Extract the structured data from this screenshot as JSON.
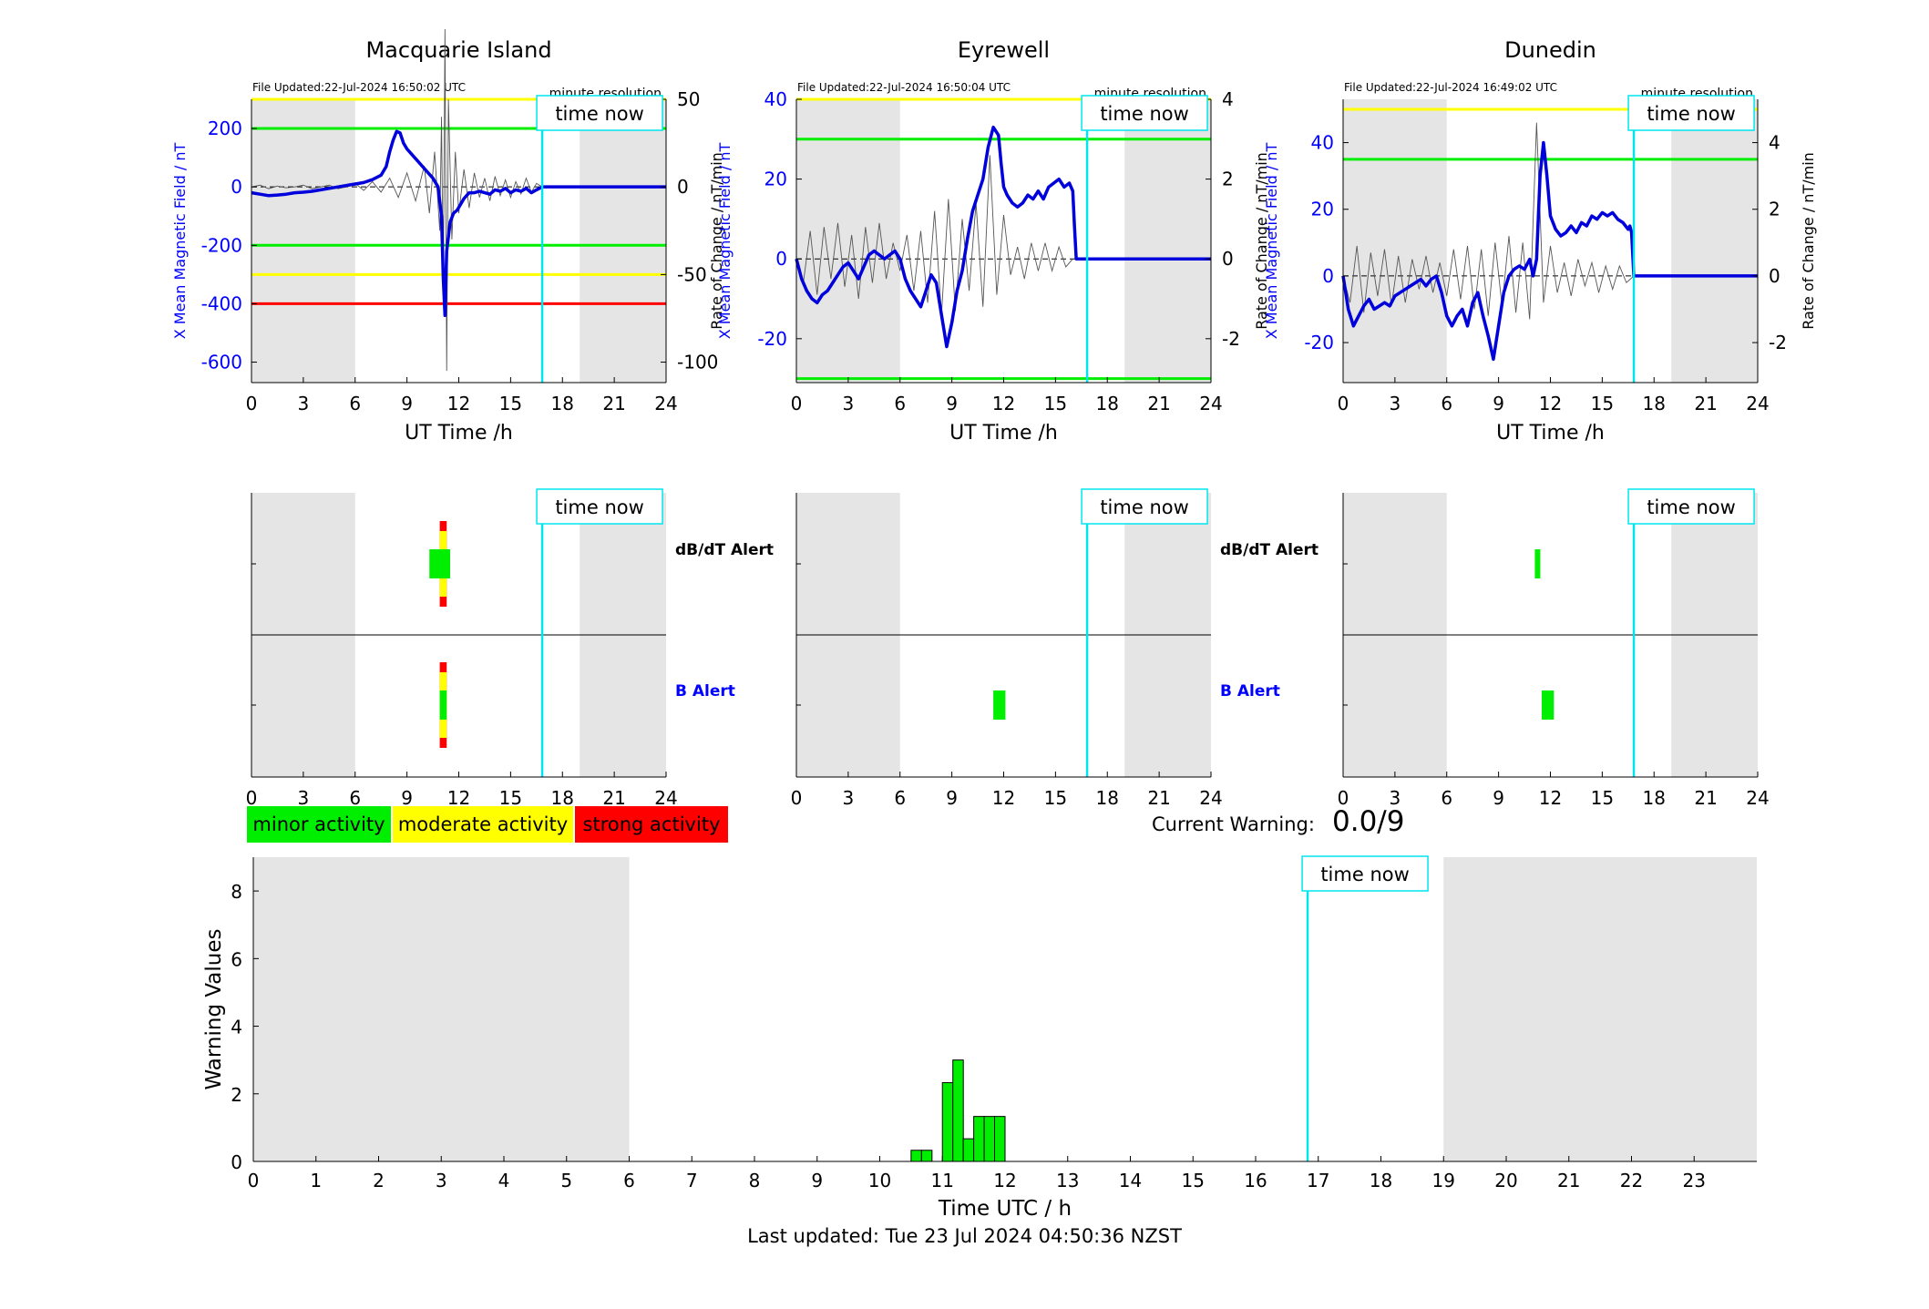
{
  "colors": {
    "shade": "#e5e5e5",
    "now_line": "#00e5ee",
    "field_line": "#0000dd",
    "roc_line": "#555555",
    "threshold_minor": "#00ee00",
    "threshold_moderate": "#ffff00",
    "threshold_strong": "#ff0000",
    "blue_text": "#0000ff"
  },
  "labels": {
    "time_now": "time now",
    "file_updated_prefix": "File Updated:",
    "minute_resolution": "minute resolution",
    "ut_time_axis": "UT Time /h",
    "y_left_axis": "X Mean Magnetic Field / nT",
    "y_right_axis": "Rate of Change / nT/min",
    "dbdt_alert": "dB/dT Alert",
    "b_alert": "B Alert"
  },
  "legend": [
    {
      "label": "minor activity",
      "color": "#00ee00"
    },
    {
      "label": "moderate activity",
      "color": "#ffff00"
    },
    {
      "label": "strong activity",
      "color": "#ff0000"
    }
  ],
  "current_warning": {
    "label": "Current Warning:",
    "value": "0.0/9"
  },
  "last_updated": "Last updated: Tue 23 Jul 2024 04:50:36 NZST",
  "chart_data": [
    {
      "type": "line",
      "title": "Macquarie Island",
      "file_updated": "22-Jul-2024 16:50:02 UTC",
      "xlabel": "UT Time /h",
      "ylabel": "X Mean Magnetic Field / nT",
      "y2label": "Rate of Change / nT/min",
      "xlim": [
        0,
        24
      ],
      "xticks": [
        0,
        3,
        6,
        9,
        12,
        15,
        18,
        21,
        24
      ],
      "ylim": [
        -670,
        300
      ],
      "yticks": [
        -600,
        -400,
        -200,
        0,
        200
      ],
      "y2lim": [
        -111.67,
        50
      ],
      "y2ticks": [
        -100,
        -50,
        0,
        50
      ],
      "time_now": 16.83,
      "shaded": [
        [
          0,
          6
        ],
        [
          19,
          24
        ]
      ],
      "thresholds": [
        {
          "value": 300,
          "level": "moderate"
        },
        {
          "value": 200,
          "level": "minor"
        },
        {
          "value": -200,
          "level": "minor"
        },
        {
          "value": -300,
          "level": "moderate"
        },
        {
          "value": -400,
          "level": "strong"
        }
      ],
      "series": [
        {
          "kind": "field",
          "x": [
            0,
            0.5,
            1,
            1.5,
            2,
            2.5,
            3,
            3.5,
            4,
            4.5,
            5,
            5.5,
            6,
            6.5,
            7,
            7.5,
            7.8,
            8.0,
            8.2,
            8.4,
            8.6,
            8.8,
            9.0,
            9.3,
            9.6,
            9.9,
            10.2,
            10.5,
            10.8,
            11.0,
            11.1,
            11.2,
            11.3,
            11.5,
            11.7,
            11.9,
            12.1,
            12.3,
            12.6,
            12.9,
            13.2,
            13.5,
            13.8,
            14.1,
            14.4,
            14.7,
            15.0,
            15.3,
            15.6,
            15.9,
            16.2,
            16.5,
            16.83,
            24
          ],
          "y": [
            -20,
            -25,
            -30,
            -28,
            -25,
            -20,
            -18,
            -15,
            -10,
            -5,
            0,
            5,
            10,
            15,
            25,
            40,
            70,
            120,
            160,
            190,
            185,
            150,
            130,
            110,
            90,
            70,
            50,
            30,
            0,
            -100,
            -310,
            -440,
            -220,
            -120,
            -90,
            -80,
            -60,
            -40,
            -20,
            -20,
            -15,
            -20,
            -25,
            -10,
            -15,
            -5,
            -20,
            -10,
            -15,
            -5,
            -20,
            -10,
            0,
            0
          ]
        },
        {
          "kind": "rate_of_change",
          "x": [
            0,
            0.5,
            1,
            1.5,
            2,
            2.5,
            3,
            3.5,
            4,
            4.5,
            5,
            5.5,
            6,
            6.5,
            7,
            7.5,
            8,
            8.5,
            9,
            9.5,
            10,
            10.3,
            10.6,
            10.9,
            11.0,
            11.1,
            11.2,
            11.3,
            11.4,
            11.6,
            11.8,
            12.0,
            12.3,
            12.6,
            12.9,
            13.2,
            13.5,
            13.8,
            14.1,
            14.4,
            14.7,
            15.0,
            15.3,
            15.6,
            15.9,
            16.2,
            16.5,
            16.83
          ],
          "y": [
            0,
            1,
            -1,
            0.5,
            -0.5,
            0,
            1,
            -1,
            0,
            1,
            -1,
            0,
            2,
            -2,
            3,
            -3,
            5,
            -6,
            8,
            -8,
            12,
            -15,
            20,
            -25,
            40,
            -60,
            90,
            -105,
            50,
            -30,
            20,
            -15,
            10,
            -12,
            8,
            -6,
            5,
            -8,
            6,
            -5,
            4,
            -6,
            3,
            -4,
            5,
            -3,
            2,
            0
          ]
        }
      ],
      "alerts": {
        "dbdt": [
          {
            "x0": 10.9,
            "x1": 11.3,
            "level": "strong"
          },
          {
            "x0": 10.9,
            "x1": 11.3,
            "level": "moderate"
          },
          {
            "x0": 10.3,
            "x1": 11.5,
            "level": "minor"
          }
        ],
        "b": [
          {
            "x0": 10.9,
            "x1": 11.3,
            "level": "strong"
          },
          {
            "x0": 10.9,
            "x1": 11.3,
            "level": "moderate"
          },
          {
            "x0": 10.9,
            "x1": 11.3,
            "level": "minor"
          }
        ]
      }
    },
    {
      "type": "line",
      "title": "Eyrewell",
      "file_updated": "22-Jul-2024 16:50:04 UTC",
      "xlabel": "UT Time /h",
      "ylabel": "X Mean Magnetic Field / nT",
      "y2label": "Rate of Change / nT/min",
      "xlim": [
        0,
        24
      ],
      "xticks": [
        0,
        3,
        6,
        9,
        12,
        15,
        18,
        21,
        24
      ],
      "ylim": [
        -31,
        40
      ],
      "yticks": [
        -20,
        0,
        20,
        40
      ],
      "y2lim": [
        -3.1,
        4
      ],
      "y2ticks": [
        -2,
        0,
        2,
        4
      ],
      "time_now": 16.83,
      "shaded": [
        [
          0,
          6
        ],
        [
          19,
          24
        ]
      ],
      "thresholds": [
        {
          "value": 40,
          "level": "moderate"
        },
        {
          "value": 30,
          "level": "minor"
        },
        {
          "value": -30,
          "level": "minor"
        }
      ],
      "series": [
        {
          "kind": "field",
          "x": [
            0,
            0.3,
            0.6,
            0.9,
            1.2,
            1.5,
            1.8,
            2.1,
            2.4,
            2.7,
            3.0,
            3.3,
            3.6,
            3.9,
            4.2,
            4.5,
            4.8,
            5.1,
            5.4,
            5.7,
            6.0,
            6.3,
            6.6,
            6.9,
            7.2,
            7.5,
            7.8,
            8.1,
            8.4,
            8.7,
            9.0,
            9.3,
            9.6,
            9.9,
            10.2,
            10.5,
            10.8,
            11.1,
            11.4,
            11.7,
            11.85,
            12.0,
            12.2,
            12.5,
            12.8,
            13.1,
            13.4,
            13.7,
            14.0,
            14.3,
            14.6,
            14.9,
            15.2,
            15.5,
            15.8,
            16.0,
            16.1,
            16.2,
            16.5,
            16.83,
            24
          ],
          "y": [
            0,
            -5,
            -8,
            -10,
            -11,
            -9,
            -8,
            -6,
            -4,
            -2,
            -1,
            -3,
            -5,
            -2,
            1,
            2,
            1,
            0,
            1,
            2,
            0,
            -5,
            -8,
            -10,
            -12,
            -8,
            -4,
            -6,
            -14,
            -22,
            -16,
            -8,
            -3,
            5,
            12,
            16,
            20,
            28,
            33,
            31,
            24,
            18,
            16,
            14,
            13,
            14,
            16,
            15,
            17,
            15,
            18,
            19,
            20,
            18,
            19,
            17,
            8,
            0,
            0,
            0,
            0
          ]
        },
        {
          "kind": "rate_of_change",
          "x": [
            0,
            0.4,
            0.8,
            1.2,
            1.6,
            2.0,
            2.4,
            2.8,
            3.2,
            3.6,
            4.0,
            4.4,
            4.8,
            5.2,
            5.6,
            6.0,
            6.4,
            6.8,
            7.2,
            7.6,
            8.0,
            8.4,
            8.8,
            9.2,
            9.6,
            10.0,
            10.4,
            10.8,
            11.2,
            11.6,
            12.0,
            12.4,
            12.8,
            13.2,
            13.6,
            14.0,
            14.4,
            14.8,
            15.2,
            15.6,
            16.0
          ],
          "y": [
            0,
            -0.6,
            0.7,
            -0.9,
            0.8,
            -0.5,
            0.9,
            -0.7,
            0.6,
            -1.0,
            0.8,
            -0.6,
            0.9,
            -0.5,
            0.4,
            -0.3,
            0.6,
            -0.8,
            0.7,
            -1.1,
            1.2,
            -1.4,
            1.5,
            -1.3,
            1.0,
            -0.8,
            1.4,
            -1.2,
            2.6,
            -0.9,
            1.1,
            -0.4,
            0.3,
            -0.5,
            0.4,
            -0.3,
            0.4,
            -0.3,
            0.3,
            -0.2,
            0
          ]
        }
      ],
      "alerts": {
        "dbdt": [],
        "b": [
          {
            "x0": 11.4,
            "x1": 12.1,
            "level": "minor"
          }
        ]
      }
    },
    {
      "type": "line",
      "title": "Dunedin",
      "file_updated": "22-Jul-2024 16:49:02 UTC",
      "xlabel": "UT Time /h",
      "ylabel": "X Mean Magnetic Field / nT",
      "y2label": "Rate of Change / nT/min",
      "xlim": [
        0,
        24
      ],
      "xticks": [
        0,
        3,
        6,
        9,
        12,
        15,
        18,
        21,
        24
      ],
      "ylim": [
        -32,
        53
      ],
      "yticks": [
        -20,
        0,
        20,
        40
      ],
      "y2lim": [
        -3.2,
        5.3
      ],
      "y2ticks": [
        -2,
        0,
        2,
        4
      ],
      "time_now": 16.83,
      "shaded": [
        [
          0,
          6
        ],
        [
          19,
          24
        ]
      ],
      "thresholds": [
        {
          "value": 50,
          "level": "moderate"
        },
        {
          "value": 35,
          "level": "minor"
        }
      ],
      "series": [
        {
          "kind": "field",
          "x": [
            0,
            0.3,
            0.6,
            0.9,
            1.2,
            1.5,
            1.8,
            2.1,
            2.4,
            2.7,
            3.0,
            3.3,
            3.6,
            3.9,
            4.2,
            4.5,
            4.8,
            5.1,
            5.4,
            5.7,
            6.0,
            6.3,
            6.6,
            6.9,
            7.2,
            7.5,
            7.8,
            8.1,
            8.4,
            8.7,
            9.0,
            9.3,
            9.6,
            9.9,
            10.2,
            10.5,
            10.8,
            11.0,
            11.2,
            11.4,
            11.6,
            11.8,
            12.0,
            12.3,
            12.6,
            12.9,
            13.2,
            13.5,
            13.8,
            14.1,
            14.4,
            14.7,
            15.0,
            15.3,
            15.6,
            15.9,
            16.2,
            16.5,
            16.6,
            16.7,
            16.83,
            24
          ],
          "y": [
            0,
            -10,
            -15,
            -12,
            -9,
            -7,
            -10,
            -9,
            -8,
            -9,
            -6,
            -5,
            -4,
            -3,
            -2,
            -1,
            -3,
            -1,
            0,
            -5,
            -12,
            -15,
            -12,
            -10,
            -15,
            -8,
            -5,
            -12,
            -18,
            -25,
            -15,
            -5,
            0,
            2,
            3,
            2,
            5,
            0,
            5,
            30,
            40,
            30,
            18,
            14,
            12,
            13,
            15,
            13,
            16,
            15,
            18,
            17,
            19,
            18,
            19,
            17,
            16,
            14,
            15,
            13,
            0,
            0
          ]
        },
        {
          "kind": "rate_of_change",
          "x": [
            0,
            0.4,
            0.8,
            1.2,
            1.6,
            2.0,
            2.4,
            2.8,
            3.2,
            3.6,
            4.0,
            4.4,
            4.8,
            5.2,
            5.6,
            6.0,
            6.4,
            6.8,
            7.2,
            7.6,
            8.0,
            8.4,
            8.8,
            9.2,
            9.6,
            10.0,
            10.4,
            10.8,
            11.2,
            11.6,
            12.0,
            12.4,
            12.8,
            13.2,
            13.6,
            14.0,
            14.4,
            14.8,
            15.2,
            15.6,
            16.0,
            16.4,
            16.83
          ],
          "y": [
            0,
            -0.8,
            0.9,
            -1.1,
            0.7,
            -0.6,
            0.8,
            -0.9,
            0.6,
            -0.8,
            0.5,
            -0.4,
            0.6,
            -0.5,
            0.4,
            -0.6,
            0.8,
            -0.7,
            0.9,
            -1.0,
            0.8,
            -1.2,
            1.0,
            -0.9,
            1.2,
            -1.1,
            1.0,
            -1.3,
            4.6,
            -0.8,
            0.9,
            -0.5,
            0.4,
            -0.6,
            0.5,
            -0.3,
            0.4,
            -0.5,
            0.3,
            -0.4,
            0.3,
            -0.2,
            0
          ]
        }
      ],
      "alerts": {
        "dbdt": [
          {
            "x0": 11.1,
            "x1": 11.4,
            "level": "minor"
          }
        ],
        "b": [
          {
            "x0": 11.5,
            "x1": 12.2,
            "level": "minor"
          }
        ]
      }
    },
    {
      "type": "bar",
      "title": "",
      "xlabel": "Time UTC / h",
      "ylabel": "Warning Values",
      "xlim": [
        0,
        24
      ],
      "xticks": [
        0,
        1,
        2,
        3,
        4,
        5,
        6,
        7,
        8,
        9,
        10,
        11,
        12,
        13,
        14,
        15,
        16,
        17,
        18,
        19,
        20,
        21,
        22,
        23
      ],
      "ylim": [
        0,
        9
      ],
      "yticks": [
        0,
        2,
        4,
        6,
        8
      ],
      "time_now": 16.83,
      "shaded": [
        [
          0,
          6
        ],
        [
          19,
          24
        ]
      ],
      "bar_width": 0.167,
      "bars": [
        {
          "x": 10.5,
          "value": 0.33
        },
        {
          "x": 10.667,
          "value": 0.33
        },
        {
          "x": 11.0,
          "value": 2.33
        },
        {
          "x": 11.167,
          "value": 3.0
        },
        {
          "x": 11.333,
          "value": 0.67
        },
        {
          "x": 11.5,
          "value": 1.33
        },
        {
          "x": 11.667,
          "value": 1.33
        },
        {
          "x": 11.833,
          "value": 1.33
        }
      ]
    }
  ]
}
